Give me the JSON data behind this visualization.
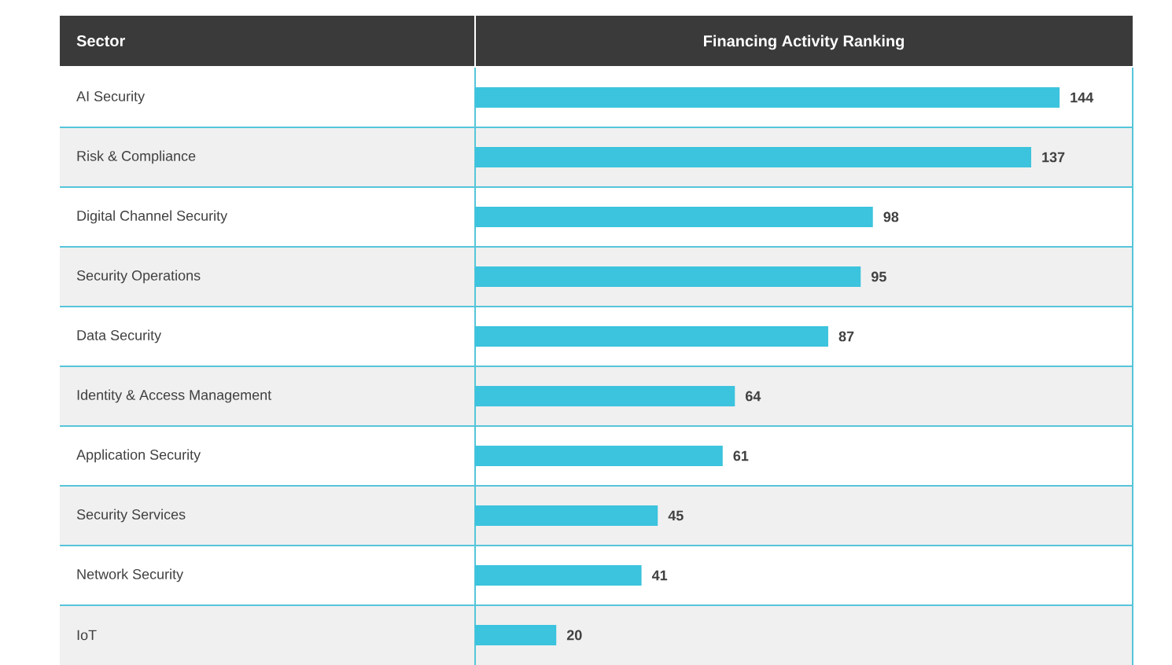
{
  "chart_data": {
    "type": "bar",
    "orientation": "horizontal",
    "title": "Financing Activity Ranking",
    "ylabel": "Sector",
    "categories": [
      "AI Security",
      "Risk & Compliance",
      "Digital Channel Security",
      "Security Operations",
      "Data Security",
      "Identity & Access Management",
      "Application Security",
      "Security Services",
      "Network Security",
      "IoT"
    ],
    "values": [
      144,
      137,
      98,
      95,
      87,
      64,
      61,
      45,
      41,
      20
    ],
    "color": "#3cc3dd",
    "data_labels": true,
    "xlim": [
      0,
      162
    ],
    "tick_labels": "y"
  }
}
